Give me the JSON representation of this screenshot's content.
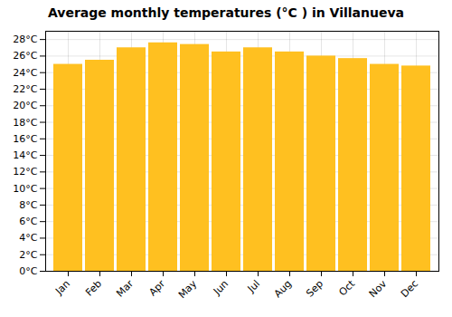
{
  "chart_data": {
    "type": "bar",
    "title": "Average monthly temperatures (°C ) in Villanueva",
    "categories": [
      "Jan",
      "Feb",
      "Mar",
      "Apr",
      "May",
      "Jun",
      "Jul",
      "Aug",
      "Sep",
      "Oct",
      "Nov",
      "Dec"
    ],
    "values": [
      25.0,
      25.5,
      27.0,
      27.6,
      27.4,
      26.5,
      27.0,
      26.5,
      26.0,
      25.7,
      25.0,
      24.8
    ],
    "color": "#FFC020",
    "ylim": [
      0,
      29
    ],
    "yticks": [
      {
        "value": 0,
        "label": "0°C"
      },
      {
        "value": 2,
        "label": "2°C"
      },
      {
        "value": 4,
        "label": "4°C"
      },
      {
        "value": 6,
        "label": "6°C"
      },
      {
        "value": 8,
        "label": "8°C"
      },
      {
        "value": 10,
        "label": "10°C"
      },
      {
        "value": 12,
        "label": "12°C"
      },
      {
        "value": 14,
        "label": "14°C"
      },
      {
        "value": 16,
        "label": "16°C"
      },
      {
        "value": 18,
        "label": "18°C"
      },
      {
        "value": 20,
        "label": "20°C"
      },
      {
        "value": 22,
        "label": "22°C"
      },
      {
        "value": 24,
        "label": "24°C"
      },
      {
        "value": 26,
        "label": "26°C"
      },
      {
        "value": 28,
        "label": "28°C"
      }
    ],
    "grid": true
  }
}
